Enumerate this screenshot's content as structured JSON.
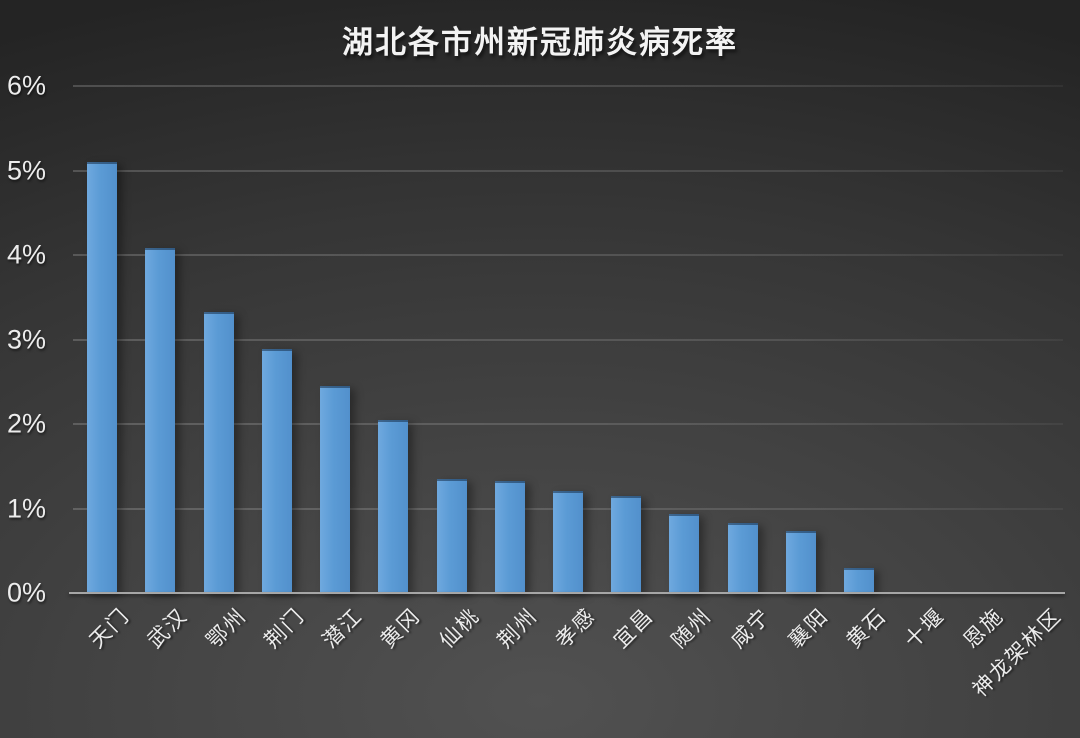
{
  "title": "湖北各市州新冠肺炎病死率",
  "chart_data": {
    "type": "bar",
    "title": "湖北各市州新冠肺炎病死率",
    "categories": [
      "天门",
      "武汉",
      "鄂州",
      "荆门",
      "潜江",
      "黄冈",
      "仙桃",
      "荆州",
      "孝感",
      "宜昌",
      "随州",
      "咸宁",
      "襄阳",
      "黄石",
      "十堰",
      "恩施",
      "神龙架林区"
    ],
    "values": [
      5.08,
      4.06,
      3.3,
      2.87,
      2.43,
      2.02,
      1.33,
      1.3,
      1.18,
      1.13,
      0.91,
      0.8,
      0.71,
      0.27,
      0,
      0,
      0
    ],
    "unit": "%",
    "xlabel": "",
    "ylabel": "",
    "ylim": [
      0,
      6
    ],
    "ytick_labels": [
      "0%",
      "1%",
      "2%",
      "3%",
      "4%",
      "5%",
      "6%"
    ],
    "grid": true,
    "legend": false,
    "bar_color": "#5b9bd5",
    "background_color": "#3c3c3c",
    "text_color": "#ececec",
    "axis_line_color": "#a6a6a6",
    "gridline_color": "rgba(255,255,255,0.14)",
    "x_tick_rotation_deg": -45
  }
}
